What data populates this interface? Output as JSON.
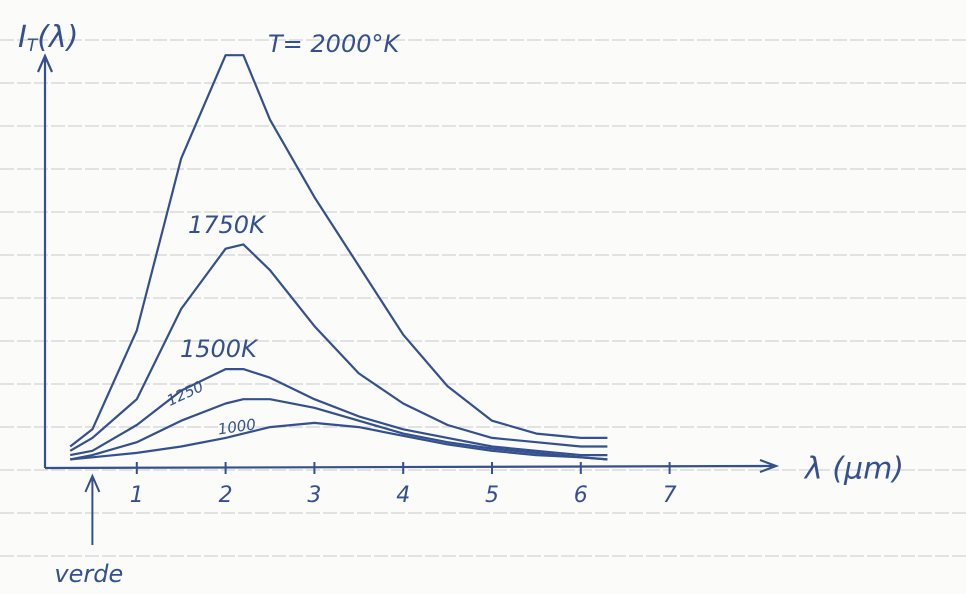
{
  "chart_data": {
    "type": "line",
    "ylabel": [
      "I",
      "T",
      "(λ)"
    ],
    "xlabel": "λ (μm)",
    "x": [
      0.25,
      0.5,
      1,
      1.5,
      2,
      2.2,
      2.5,
      3,
      3.5,
      4,
      4.5,
      5,
      5.5,
      6,
      6.3
    ],
    "series": [
      {
        "name": "T= 2000°K",
        "color": "#34508f",
        "values": [
          0.5,
          0.9,
          3.2,
          7.2,
          9.6,
          9.6,
          8.1,
          6.3,
          4.7,
          3.1,
          1.9,
          1.1,
          0.8,
          0.7,
          0.7
        ]
      },
      {
        "name": "1750K",
        "color": "#34508f",
        "values": [
          0.4,
          0.7,
          1.6,
          3.7,
          5.1,
          5.2,
          4.6,
          3.3,
          2.2,
          1.5,
          1.0,
          0.7,
          0.6,
          0.5,
          0.5
        ]
      },
      {
        "name": "1500K",
        "color": "#34508f",
        "values": [
          0.3,
          0.4,
          1.0,
          1.8,
          2.3,
          2.3,
          2.1,
          1.6,
          1.2,
          0.9,
          0.7,
          0.5,
          0.4,
          0.3,
          0.3
        ]
      },
      {
        "name": "1250",
        "color": "#34508f",
        "values": [
          0.2,
          0.3,
          0.6,
          1.1,
          1.5,
          1.6,
          1.6,
          1.4,
          1.1,
          0.8,
          0.6,
          0.45,
          0.35,
          0.25,
          0.2
        ]
      },
      {
        "name": "1000",
        "color": "#34508f",
        "values": [
          0.2,
          0.25,
          0.35,
          0.5,
          0.7,
          0.8,
          0.95,
          1.05,
          0.95,
          0.75,
          0.55,
          0.4,
          0.3,
          0.25,
          0.2
        ]
      }
    ],
    "xlim": [
      0,
      8.1
    ],
    "xticks": [
      1,
      2,
      3,
      4,
      5,
      6,
      7
    ],
    "ylim": [
      0,
      10
    ],
    "annotations": [
      {
        "text": "verde",
        "x": 0.5
      }
    ]
  }
}
